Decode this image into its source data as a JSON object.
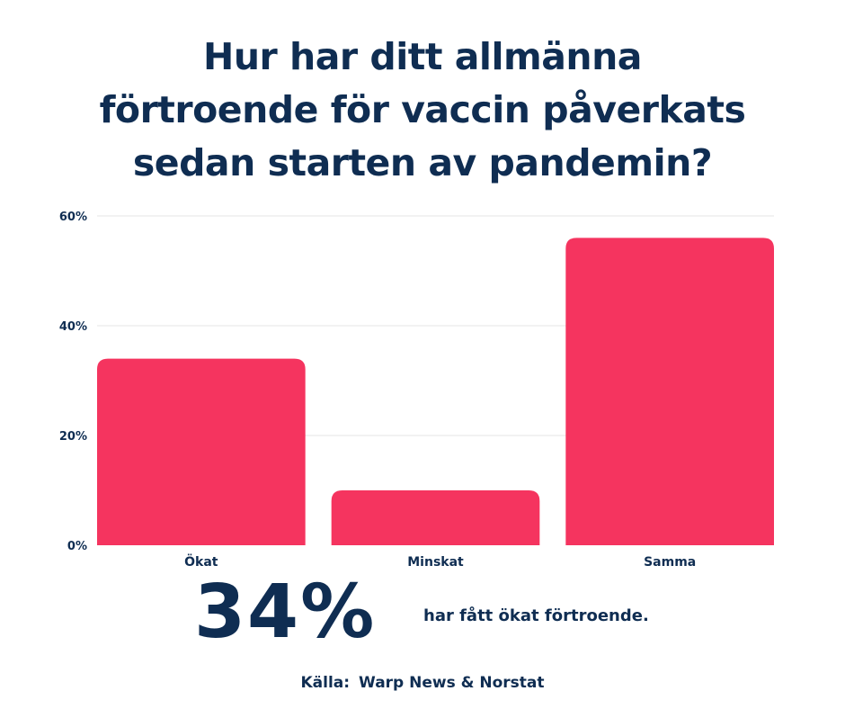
{
  "title": "Hur har ditt allmänna\nförtroende för vaccin påverkats\nsedan starten av pandemin?",
  "chart_data": {
    "type": "bar",
    "title": "Hur har ditt allmänna förtroende för vaccin påverkats sedan starten av pandemin?",
    "categories": [
      "Ökat",
      "Minskat",
      "Samma"
    ],
    "values": [
      34,
      10,
      56
    ],
    "unit": "%",
    "ylim": [
      0,
      60
    ],
    "yticks": [
      0,
      20,
      40,
      60
    ],
    "ytick_labels": [
      "0%",
      "20%",
      "40%",
      "60%"
    ],
    "xlabel": "",
    "ylabel": "",
    "grid": true,
    "legend": "none",
    "bar_color": "#f5345f",
    "text_color": "#0f2d52",
    "grid_color": "#e6e6e6"
  },
  "highlight": {
    "value": "34%",
    "text": "har fått ökat förtroende."
  },
  "source": {
    "label": "Källa:",
    "value": "Warp News & Norstat"
  }
}
